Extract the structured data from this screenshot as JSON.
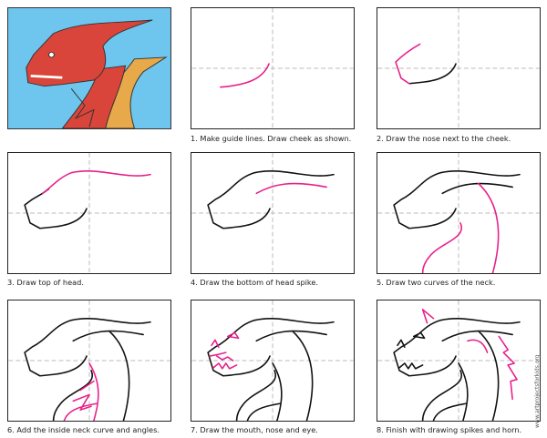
{
  "steps": [
    {
      "caption": "1. Make guide lines. Draw cheek as shown."
    },
    {
      "caption": "2. Draw the nose next to the cheek."
    },
    {
      "caption": "3. Draw top of head."
    },
    {
      "caption": "4. Draw the bottom of head spike."
    },
    {
      "caption": "5. Draw two curves of the neck."
    },
    {
      "caption": "6. Add the inside neck curve and angles."
    },
    {
      "caption": "7. Draw the mouth, nose and eye."
    },
    {
      "caption": "8. Finish with drawing spikes and horn."
    }
  ],
  "watermark": "www.artprojectsforkids.org",
  "colors": {
    "highlight": "#e8208a",
    "line": "#111111",
    "background_blue": "#6ec6ee",
    "dragon_red": "#d9453a"
  }
}
